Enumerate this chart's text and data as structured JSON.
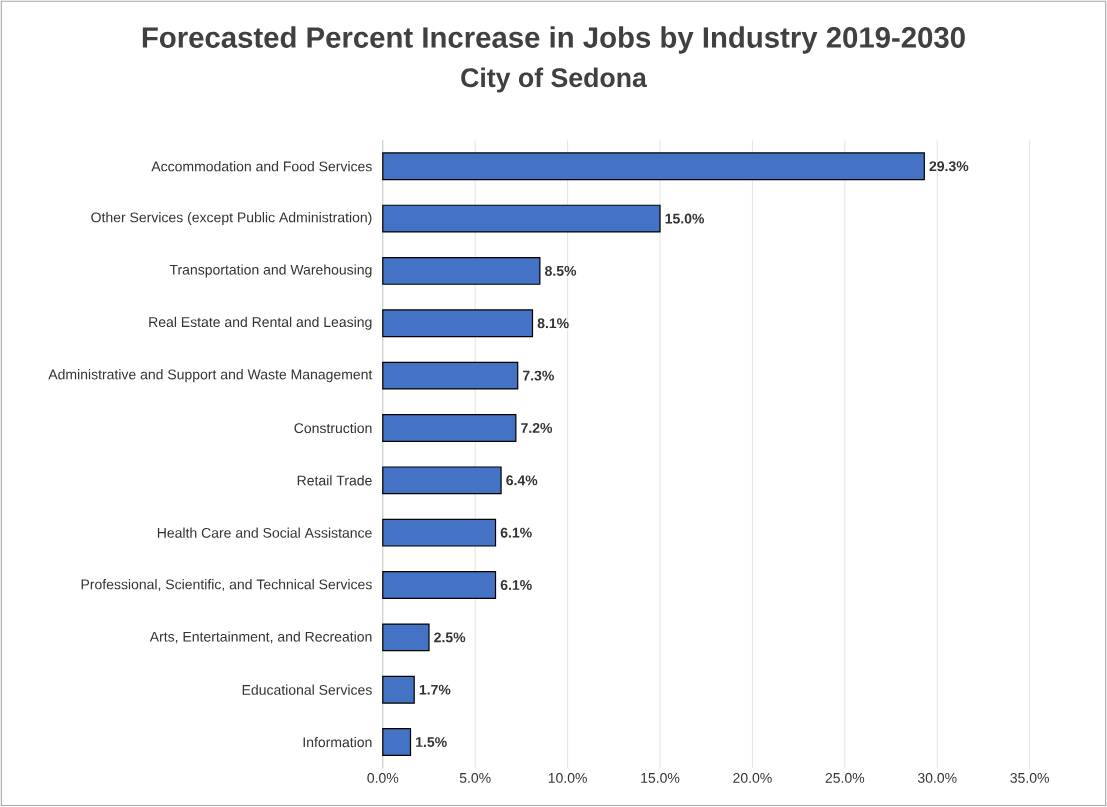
{
  "chart_data": {
    "type": "bar",
    "orientation": "horizontal",
    "title": "Forecasted Percent Increase in Jobs by Industry 2019-2030",
    "subtitle": "City of Sedona",
    "categories": [
      "Accommodation and Food Services",
      "Other Services (except Public Administration)",
      "Transportation and Warehousing",
      "Real Estate and Rental and Leasing",
      "Administrative and Support and Waste Management",
      "Construction",
      "Retail Trade",
      "Health Care and Social Assistance",
      "Professional, Scientific, and Technical Services",
      "Arts, Entertainment, and Recreation",
      "Educational Services",
      "Information"
    ],
    "values": [
      29.3,
      15.0,
      8.5,
      8.1,
      7.3,
      7.2,
      6.4,
      6.1,
      6.1,
      2.5,
      1.7,
      1.5
    ],
    "value_labels": [
      "29.3%",
      "15.0%",
      "8.5%",
      "8.1%",
      "7.3%",
      "7.2%",
      "6.4%",
      "6.1%",
      "6.1%",
      "2.5%",
      "1.7%",
      "1.5%"
    ],
    "color": "#4472c4",
    "xlim": [
      0,
      35
    ],
    "xticks": [
      {
        "value": 0,
        "label": "0.0%"
      },
      {
        "value": 5,
        "label": "5.0%"
      },
      {
        "value": 10,
        "label": "10.0%"
      },
      {
        "value": 15,
        "label": "15.0%"
      },
      {
        "value": 20,
        "label": "20.0%"
      },
      {
        "value": 25,
        "label": "25.0%"
      },
      {
        "value": 30,
        "label": "30.0%"
      },
      {
        "value": 35,
        "label": "35.0%"
      }
    ],
    "grid": "x"
  }
}
